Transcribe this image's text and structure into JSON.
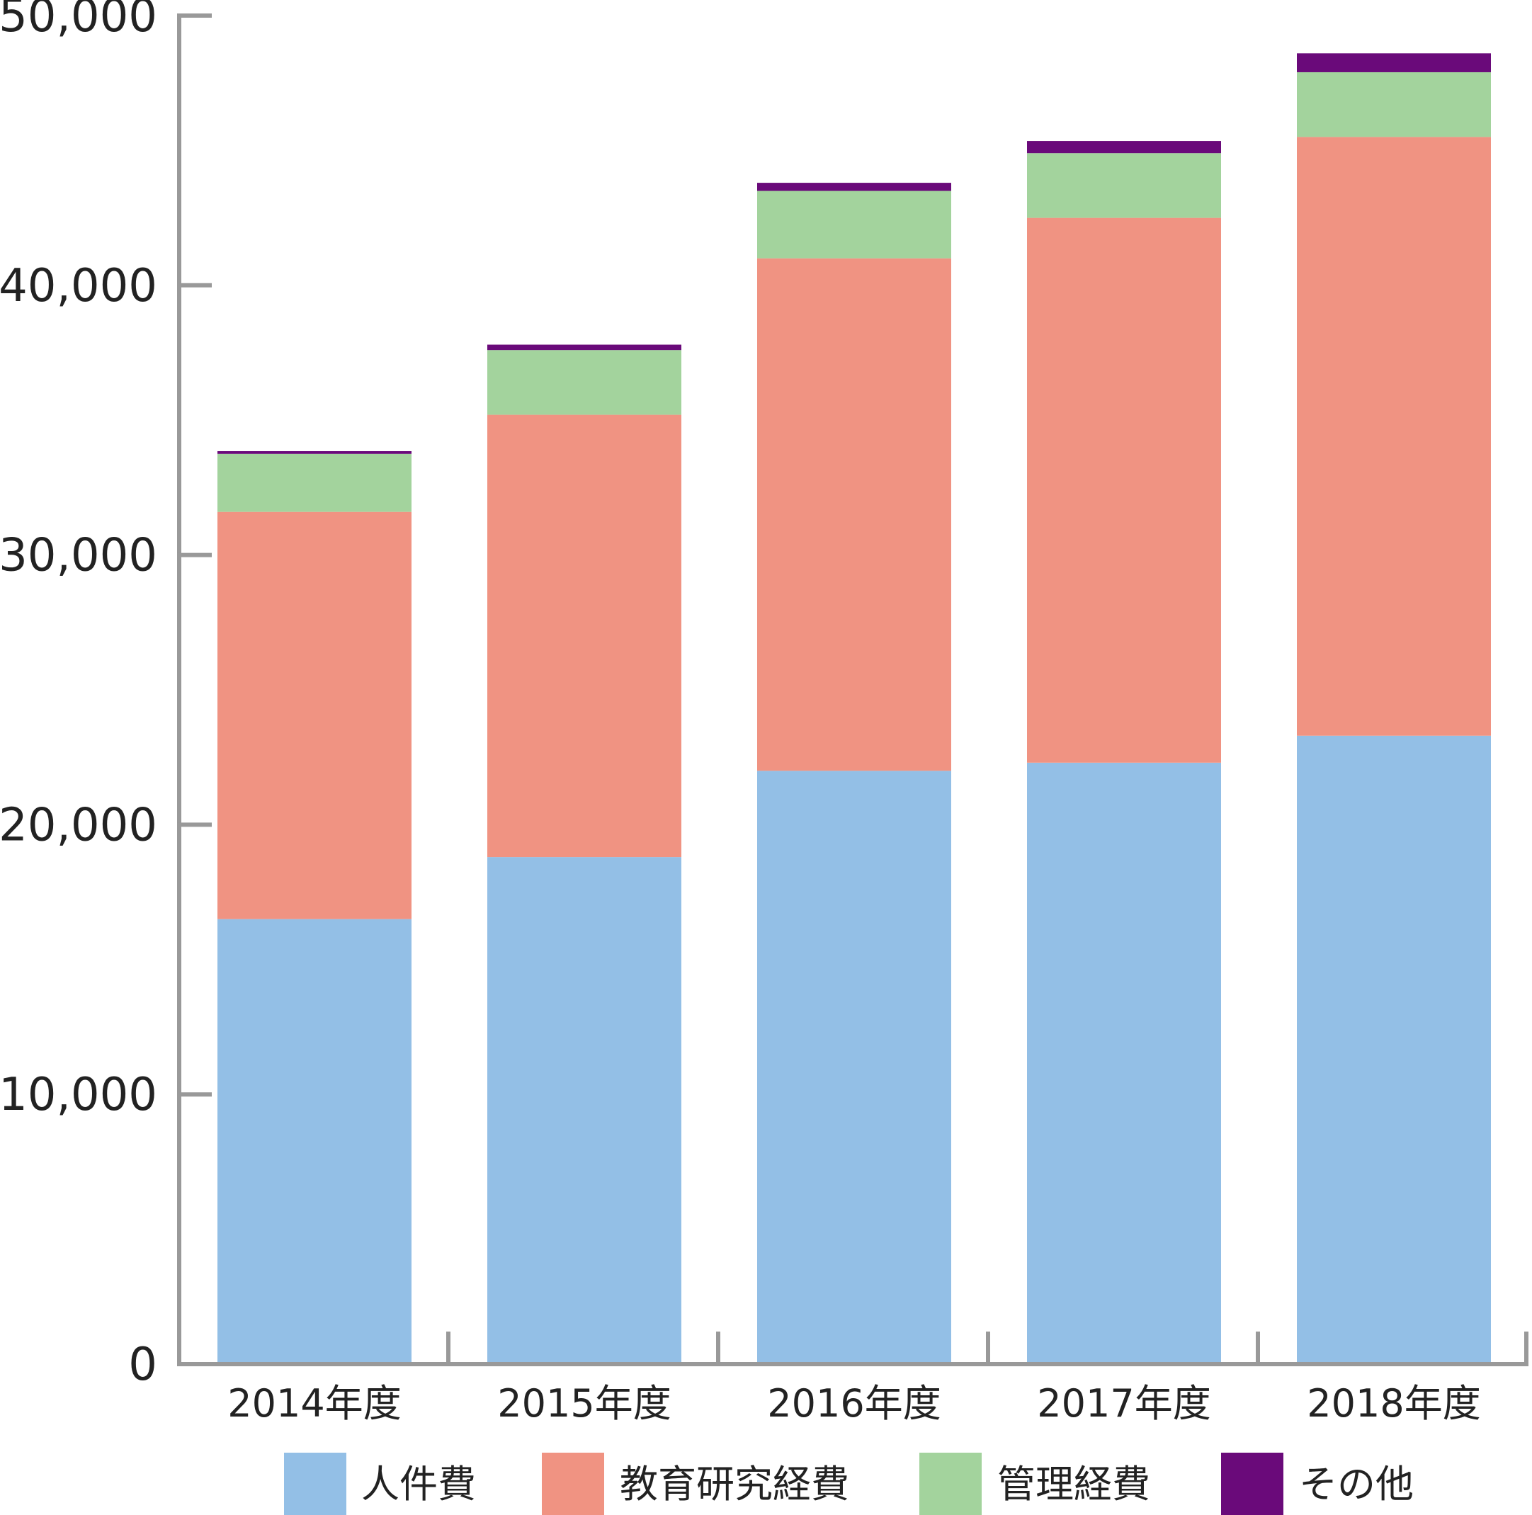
{
  "chart_data": {
    "type": "bar",
    "stacked": true,
    "categories": [
      "2014年度",
      "2015年度",
      "2016年度",
      "2017年度",
      "2018年度"
    ],
    "series": [
      {
        "name": "人件費",
        "color": "#93bfe6",
        "values": [
          16500,
          18800,
          22000,
          22300,
          23300
        ]
      },
      {
        "name": "教育研究経費",
        "color": "#f09382",
        "values": [
          15100,
          16400,
          19000,
          20200,
          22200
        ]
      },
      {
        "name": "管理経費",
        "color": "#a3d39d",
        "values": [
          2150,
          2400,
          2500,
          2400,
          2400
        ]
      },
      {
        "name": "その他",
        "color": "#6a0a7a",
        "values": [
          100,
          200,
          300,
          450,
          700
        ]
      }
    ],
    "ylim": [
      0,
      50000
    ],
    "yticks": [
      0,
      10000,
      20000,
      30000,
      40000,
      50000
    ],
    "ytick_labels": [
      "0",
      "10,000",
      "20,000",
      "30,000",
      "40,000",
      "50,000"
    ],
    "title": "",
    "xlabel": "",
    "ylabel": "",
    "grid": false,
    "legend_position": "bottom",
    "axis_color": "#999999"
  }
}
